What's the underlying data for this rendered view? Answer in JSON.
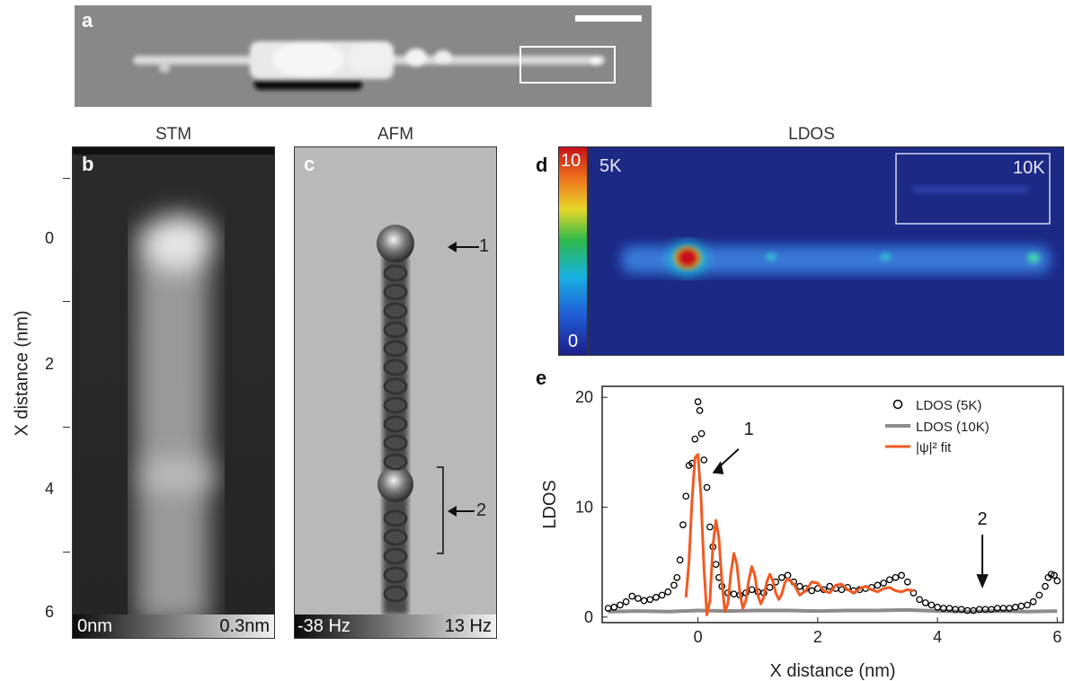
{
  "panel_a": {
    "label": "a"
  },
  "panel_b": {
    "label": "b",
    "title": "STM",
    "cbar_min": "0nm",
    "cbar_max": "0.3nm",
    "ylabel": "X distance (nm)",
    "yticks": [
      "0",
      "2",
      "4",
      "6"
    ]
  },
  "panel_c": {
    "label": "c",
    "title": "AFM",
    "cbar_min": "-38 Hz",
    "cbar_max": "13 Hz",
    "marker1": "1",
    "marker2": "2"
  },
  "panel_d": {
    "label": "d",
    "title": "LDOS",
    "cbar_max": "10",
    "cbar_min": "0",
    "label_5k": "5K",
    "label_10k": "10K"
  },
  "panel_e": {
    "label": "e",
    "marker1": "1",
    "marker2": "2"
  },
  "colors": {
    "fit": "#f05a22",
    "ldos10k": "#8c8c8c",
    "ldos5k": "#000000",
    "heatmap_bg": "#1c2a86"
  },
  "chart_data": {
    "type": "scatter",
    "xlabel": "X distance (nm)",
    "ylabel": "LDOS",
    "xlim": [
      -1.6,
      6.1
    ],
    "ylim": [
      -0.5,
      21
    ],
    "xticks": [
      0,
      2,
      4,
      6
    ],
    "yticks": [
      0,
      10,
      20
    ],
    "legend_position": "top-right",
    "series": [
      {
        "name": "LDOS (5K)",
        "marker": "open-circle",
        "x": [
          -1.5,
          -1.4,
          -1.3,
          -1.2,
          -1.1,
          -1.0,
          -0.9,
          -0.8,
          -0.7,
          -0.6,
          -0.5,
          -0.4,
          -0.35,
          -0.3,
          -0.25,
          -0.2,
          -0.15,
          -0.1,
          -0.05,
          0.0,
          0.03,
          0.06,
          0.1,
          0.15,
          0.2,
          0.25,
          0.3,
          0.35,
          0.4,
          0.5,
          0.6,
          0.7,
          0.8,
          0.9,
          1.0,
          1.1,
          1.2,
          1.3,
          1.4,
          1.5,
          1.6,
          1.7,
          1.8,
          1.9,
          2.0,
          2.1,
          2.2,
          2.3,
          2.4,
          2.5,
          2.6,
          2.7,
          2.8,
          2.9,
          3.0,
          3.1,
          3.2,
          3.3,
          3.4,
          3.5,
          3.6,
          3.7,
          3.8,
          3.9,
          4.0,
          4.1,
          4.2,
          4.3,
          4.4,
          4.5,
          4.6,
          4.7,
          4.8,
          4.9,
          5.0,
          5.1,
          5.2,
          5.3,
          5.4,
          5.5,
          5.6,
          5.7,
          5.8,
          5.85,
          5.9,
          5.95,
          6.0
        ],
        "y": [
          0.8,
          0.9,
          1.1,
          1.4,
          1.9,
          1.7,
          1.5,
          1.6,
          1.8,
          2.0,
          2.3,
          2.9,
          3.6,
          5.2,
          8.4,
          11.0,
          13.8,
          14.0,
          16.2,
          19.6,
          18.8,
          16.7,
          14.3,
          11.8,
          8.2,
          6.4,
          4.8,
          3.6,
          2.8,
          2.2,
          2.1,
          2.0,
          2.2,
          2.5,
          2.3,
          2.2,
          2.7,
          3.2,
          3.6,
          3.8,
          3.2,
          2.8,
          2.6,
          2.4,
          2.6,
          2.5,
          2.8,
          2.6,
          2.5,
          2.7,
          2.4,
          2.5,
          2.6,
          2.7,
          2.9,
          3.1,
          3.4,
          3.6,
          3.8,
          3.2,
          2.2,
          1.6,
          1.3,
          1.1,
          0.9,
          0.8,
          0.8,
          0.7,
          0.7,
          0.6,
          0.6,
          0.7,
          0.7,
          0.7,
          0.8,
          0.8,
          0.8,
          0.9,
          1.0,
          1.1,
          1.4,
          2.0,
          2.8,
          3.6,
          3.9,
          3.8,
          3.3
        ]
      },
      {
        "name": "LDOS (10K)",
        "marker": "line",
        "x": [
          -1.5,
          -1.0,
          -0.5,
          0.0,
          0.5,
          1.0,
          1.5,
          2.0,
          2.5,
          3.0,
          3.5,
          4.0,
          4.5,
          5.0,
          5.5,
          6.0
        ],
        "y": [
          0.5,
          0.55,
          0.5,
          0.6,
          0.55,
          0.6,
          0.6,
          0.55,
          0.6,
          0.6,
          0.65,
          0.55,
          0.5,
          0.55,
          0.5,
          0.55
        ]
      },
      {
        "name": "|ψ|² fit",
        "marker": "line",
        "x": [
          -0.2,
          -0.15,
          -0.1,
          -0.05,
          0.0,
          0.05,
          0.1,
          0.15,
          0.2,
          0.25,
          0.3,
          0.35,
          0.4,
          0.45,
          0.5,
          0.55,
          0.6,
          0.65,
          0.7,
          0.75,
          0.8,
          0.85,
          0.9,
          0.95,
          1.0,
          1.05,
          1.1,
          1.15,
          1.2,
          1.25,
          1.3,
          1.35,
          1.4,
          1.45,
          1.5,
          1.6,
          1.7,
          1.8,
          1.9,
          2.0,
          2.1,
          2.2,
          2.3,
          2.4,
          2.5,
          2.6,
          2.7,
          2.8,
          2.9,
          3.0,
          3.1,
          3.2,
          3.3,
          3.4,
          3.5,
          3.6
        ],
        "y": [
          1.8,
          5.0,
          10.5,
          14.5,
          14.8,
          11.0,
          4.5,
          0.2,
          1.5,
          6.5,
          8.8,
          7.2,
          3.2,
          0.5,
          1.2,
          4.0,
          5.8,
          4.8,
          2.2,
          0.8,
          1.5,
          3.4,
          4.6,
          3.8,
          2.0,
          1.2,
          1.8,
          3.2,
          3.9,
          3.3,
          2.2,
          1.6,
          2.1,
          3.1,
          3.5,
          3.0,
          2.0,
          2.4,
          3.2,
          3.1,
          2.4,
          2.2,
          2.9,
          3.0,
          2.5,
          2.2,
          2.6,
          2.8,
          2.5,
          2.3,
          2.6,
          2.7,
          2.4,
          2.3,
          2.5,
          2.4
        ]
      }
    ]
  }
}
